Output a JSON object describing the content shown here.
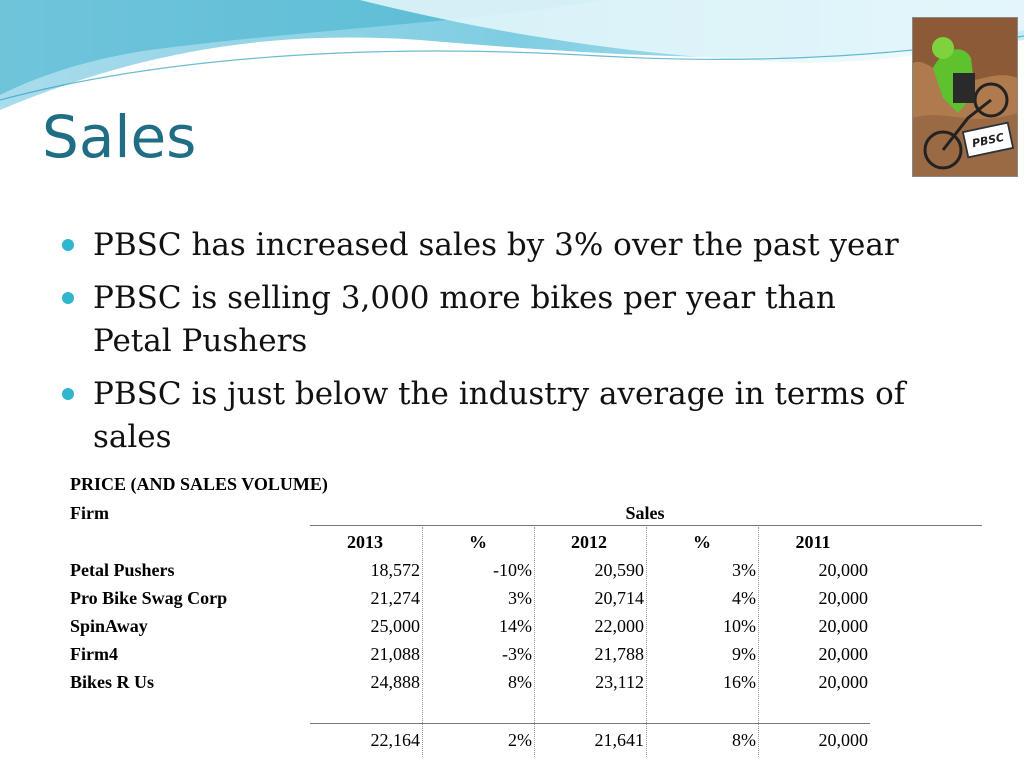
{
  "slide": {
    "title": "Sales",
    "bullets": [
      "PBSC has increased sales by 3% over the past year",
      "PBSC is selling 3,000 more bikes per year than Petal Pushers",
      "PBSC is just below the industry average in terms of sales"
    ],
    "logo_text": "PBSC"
  },
  "table": {
    "caption": "PRICE (AND SALES VOLUME)",
    "firm_header": "Firm",
    "group_header": "Sales",
    "columns": [
      "2013",
      "%",
      "2012",
      "%",
      "2011"
    ],
    "rows": [
      {
        "firm": "Petal Pushers",
        "values": [
          "18,572",
          "-10%",
          "20,590",
          "3%",
          "20,000"
        ]
      },
      {
        "firm": "Pro Bike Swag Corp",
        "values": [
          "21,274",
          "3%",
          "20,714",
          "4%",
          "20,000"
        ]
      },
      {
        "firm": "SpinAway",
        "values": [
          "25,000",
          "14%",
          "22,000",
          "10%",
          "20,000"
        ]
      },
      {
        "firm": "Firm4",
        "values": [
          "21,088",
          "-3%",
          "21,788",
          "9%",
          "20,000"
        ]
      },
      {
        "firm": "Bikes R Us",
        "values": [
          "24,888",
          "8%",
          "23,112",
          "16%",
          "20,000"
        ]
      }
    ],
    "totals": [
      "22,164",
      "2%",
      "21,641",
      "8%",
      "20,000"
    ]
  },
  "colors": {
    "title": "#1f6e86",
    "bullet": "#2fb6cf",
    "wave_light": "#bfe6f0",
    "wave_mid": "#6fc6dc",
    "wave_dark": "#2a9fbd"
  }
}
